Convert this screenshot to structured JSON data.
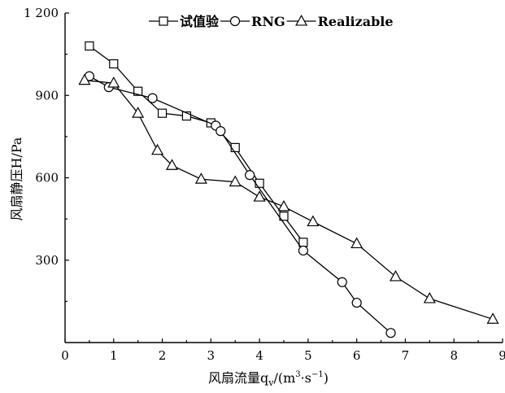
{
  "chart_data": {
    "type": "line",
    "title": "",
    "xlabel": "风扇流量q",
    "xlabel_subscript": "v",
    "xlabel_unit_prefix": "/(m",
    "xlabel_unit_sup1": "3",
    "xlabel_unit_mid": "·s",
    "xlabel_unit_sup2": "−1",
    "xlabel_unit_suffix": ")",
    "ylabel": "风扇静压H/Pa",
    "xlim": [
      0,
      9
    ],
    "ylim": [
      0,
      1200
    ],
    "xticks": [
      "0",
      "1",
      "2",
      "3",
      "4",
      "5",
      "6",
      "7",
      "8",
      "9"
    ],
    "yticks": [
      "300",
      "600",
      "900",
      "1 200"
    ],
    "ytick_values": [
      300,
      600,
      900,
      1200
    ],
    "legend_position": "top",
    "grid": false,
    "series": [
      {
        "name": "试值验",
        "marker": "square",
        "x": [
          0.5,
          1.0,
          1.5,
          2.0,
          2.5,
          3.0,
          3.5,
          4.0,
          4.5,
          4.9
        ],
        "y": [
          1080,
          1015,
          915,
          835,
          825,
          800,
          710,
          580,
          460,
          365
        ]
      },
      {
        "name": "RNG",
        "marker": "circle",
        "x": [
          0.5,
          0.9,
          1.8,
          3.1,
          3.2,
          3.8,
          4.9,
          5.7,
          6.0,
          6.7
        ],
        "y": [
          970,
          930,
          890,
          790,
          770,
          610,
          335,
          220,
          145,
          35
        ]
      },
      {
        "name": "Realizable",
        "marker": "triangle",
        "x": [
          0.4,
          1.0,
          1.5,
          1.9,
          2.2,
          2.8,
          3.5,
          4.0,
          4.5,
          5.1,
          6.0,
          6.8,
          7.5,
          8.8
        ],
        "y": [
          955,
          945,
          835,
          700,
          645,
          595,
          585,
          530,
          495,
          440,
          360,
          240,
          160,
          85
        ]
      }
    ]
  }
}
